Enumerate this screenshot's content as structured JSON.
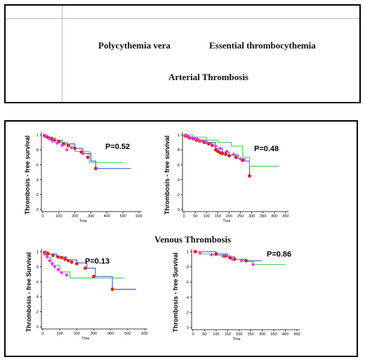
{
  "header": {
    "col_left": "Polycythemia vera",
    "col_right": "Essential thrombocythemia",
    "section_top": "Arterial Thrombosis"
  },
  "section_bottom": "Venous Thrombosis",
  "colors": {
    "blue": "#2b44c8",
    "green": "#2ecc40",
    "red": "#e02010",
    "magenta": "#ff33ff",
    "axis": "#000000"
  },
  "chart_data": [
    {
      "type": "line",
      "title": "",
      "xlabel": "Tme",
      "ylabel": "Thrombosis - free survival",
      "xlim": [
        0,
        600
      ],
      "ylim": [
        0,
        1
      ],
      "xticks": [
        "0",
        "100",
        "200",
        "300",
        "400",
        "500",
        "600"
      ],
      "yticks": [
        "0",
        ".2",
        ".4",
        ".6",
        ".8",
        "1"
      ],
      "annotation": "P=0.52",
      "series": [
        {
          "color": "#2b44c8",
          "x": [
            0,
            20,
            60,
            120,
            200,
            250,
            300,
            330,
            550
          ],
          "y": [
            1,
            0.97,
            0.93,
            0.88,
            0.82,
            0.75,
            0.65,
            0.55,
            0.55
          ]
        },
        {
          "color": "#2ecc40",
          "x": [
            0,
            30,
            80,
            150,
            200,
            260,
            290,
            500
          ],
          "y": [
            1,
            0.96,
            0.9,
            0.84,
            0.78,
            0.78,
            0.63,
            0.63
          ]
        }
      ],
      "markers": [
        {
          "color": "#e02010",
          "x": [
            10,
            30,
            50,
            70,
            100,
            130,
            160,
            200,
            240,
            280,
            330
          ],
          "y": [
            0.99,
            0.97,
            0.95,
            0.93,
            0.91,
            0.88,
            0.86,
            0.82,
            0.77,
            0.7,
            0.55
          ]
        },
        {
          "color": "#ff33ff",
          "x": [
            15,
            40,
            60,
            90,
            120,
            150,
            180,
            250
          ],
          "y": [
            0.98,
            0.95,
            0.92,
            0.89,
            0.86,
            0.8,
            0.83,
            0.75
          ]
        }
      ]
    },
    {
      "type": "line",
      "title": "",
      "xlabel": "Tme",
      "ylabel": "Thrombosis - free survival",
      "xlim": [
        0,
        450
      ],
      "ylim": [
        0,
        1
      ],
      "xticks": [
        "0",
        "50",
        "100",
        "150",
        "200",
        "250",
        "300",
        "350",
        "400",
        "450"
      ],
      "yticks": [
        "0",
        ".2",
        ".4",
        ".6",
        ".8",
        "1"
      ],
      "annotation": "P=0.48",
      "series": [
        {
          "color": "#2b44c8",
          "x": [
            0,
            20,
            60,
            100,
            140,
            170,
            200,
            240,
            270,
            290
          ],
          "y": [
            1,
            0.97,
            0.93,
            0.9,
            0.82,
            0.77,
            0.73,
            0.68,
            0.65,
            0.45
          ]
        },
        {
          "color": "#2ecc40",
          "x": [
            0,
            40,
            100,
            150,
            210,
            260,
            290,
            420
          ],
          "y": [
            1,
            0.97,
            0.93,
            0.9,
            0.85,
            0.7,
            0.58,
            0.58
          ]
        }
      ],
      "markers": [
        {
          "color": "#e02010",
          "x": [
            5,
            15,
            25,
            40,
            55,
            70,
            90,
            110,
            125,
            140,
            150,
            160,
            170,
            185,
            200,
            230,
            260,
            290
          ],
          "y": [
            0.99,
            0.98,
            0.96,
            0.95,
            0.93,
            0.92,
            0.9,
            0.88,
            0.86,
            0.8,
            0.78,
            0.76,
            0.75,
            0.74,
            0.72,
            0.7,
            0.66,
            0.45
          ]
        },
        {
          "color": "#ff33ff",
          "x": [
            8,
            20,
            35,
            50,
            65,
            80,
            100,
            120,
            140,
            160,
            190,
            220,
            250
          ],
          "y": [
            1,
            0.98,
            0.96,
            0.95,
            0.93,
            0.92,
            0.9,
            0.88,
            0.85,
            0.82,
            0.78,
            0.74,
            0.68
          ]
        }
      ]
    },
    {
      "type": "line",
      "title": "",
      "xlabel": "Tme",
      "ylabel": "Thrombosis - free Survival",
      "xlim": [
        0,
        600
      ],
      "ylim": [
        0,
        1
      ],
      "xticks": [
        "0",
        "100",
        "200",
        "300",
        "400",
        "500",
        "600"
      ],
      "yticks": [
        "0",
        ".2",
        ".4",
        ".6",
        ".8",
        "1"
      ],
      "annotation": "P=0.13",
      "series": [
        {
          "color": "#2b44c8",
          "x": [
            0,
            30,
            80,
            140,
            200,
            260,
            310,
            410,
            550
          ],
          "y": [
            1,
            0.97,
            0.93,
            0.89,
            0.85,
            0.78,
            0.67,
            0.5,
            0.5
          ]
        },
        {
          "color": "#2ecc40",
          "x": [
            0,
            20,
            50,
            100,
            160,
            480
          ],
          "y": [
            1,
            0.92,
            0.82,
            0.73,
            0.65,
            0.65
          ]
        }
      ],
      "markers": [
        {
          "color": "#e02010",
          "x": [
            10,
            30,
            60,
            90,
            110,
            130,
            150,
            170,
            200,
            250,
            300,
            410
          ],
          "y": [
            0.99,
            0.97,
            0.95,
            0.93,
            0.92,
            0.9,
            0.88,
            0.86,
            0.84,
            0.78,
            0.67,
            0.5
          ]
        },
        {
          "color": "#ff33ff",
          "x": [
            10,
            25,
            40,
            55,
            70,
            90,
            110,
            140
          ],
          "y": [
            0.97,
            0.93,
            0.88,
            0.84,
            0.8,
            0.76,
            0.72,
            0.69
          ]
        }
      ]
    },
    {
      "type": "line",
      "title": "",
      "xlabel": "Tme",
      "ylabel": "Thrombosis - free Survival",
      "xlim": [
        0,
        450
      ],
      "ylim": [
        0,
        1
      ],
      "xticks": [
        "0",
        "50",
        "100",
        "150",
        "200",
        "250",
        "300",
        "350",
        "400",
        "450"
      ],
      "yticks": [
        "0",
        ".2",
        ".4",
        ".6",
        ".8",
        "1"
      ],
      "annotation": "P=0.86",
      "series": [
        {
          "color": "#2b44c8",
          "x": [
            0,
            100,
            150,
            180,
            220,
            300
          ],
          "y": [
            1,
            0.97,
            0.93,
            0.9,
            0.88,
            0.88
          ]
        },
        {
          "color": "#2ecc40",
          "x": [
            0,
            30,
            90,
            160,
            230,
            260,
            400
          ],
          "y": [
            1,
            0.97,
            0.95,
            0.9,
            0.87,
            0.83,
            0.83
          ]
        }
      ],
      "markers": [
        {
          "color": "#e02010",
          "x": [
            10,
            100,
            140,
            160,
            180,
            230
          ],
          "y": [
            1,
            0.97,
            0.94,
            0.92,
            0.9,
            0.88
          ]
        },
        {
          "color": "#ff33ff",
          "x": [
            30,
            80,
            130,
            170,
            210,
            260
          ],
          "y": [
            0.98,
            0.96,
            0.94,
            0.9,
            0.88,
            0.83
          ]
        }
      ]
    }
  ]
}
